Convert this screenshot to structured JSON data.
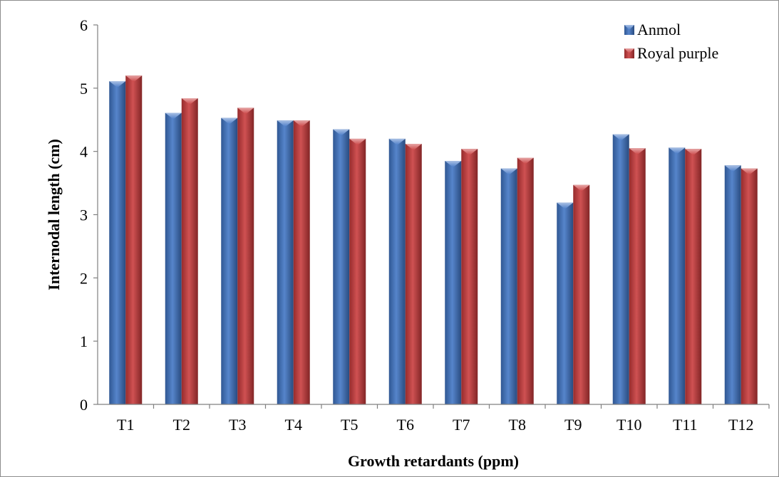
{
  "chart_data": {
    "type": "bar",
    "title": "",
    "xlabel": "Growth retardants (ppm)",
    "ylabel": "Internodal length (cm)",
    "ylim": [
      0,
      6
    ],
    "yticks": [
      "0",
      "1",
      "2",
      "3",
      "4",
      "5",
      "6"
    ],
    "grid": false,
    "legend_position": "top-right",
    "categories": [
      "T1",
      "T2",
      "T3",
      "T4",
      "T5",
      "T6",
      "T7",
      "T8",
      "T9",
      "T10",
      "T11",
      "T12"
    ],
    "series": [
      {
        "name": "Anmol",
        "color": "#3f74c4",
        "values": [
          5.11,
          4.61,
          4.53,
          4.49,
          4.35,
          4.2,
          3.85,
          3.73,
          3.19,
          4.27,
          4.06,
          3.78
        ]
      },
      {
        "name": "Royal purple",
        "color": "#c8393a",
        "values": [
          5.2,
          4.84,
          4.69,
          4.49,
          4.2,
          4.12,
          4.04,
          3.9,
          3.47,
          4.05,
          4.04,
          3.73
        ]
      }
    ]
  }
}
